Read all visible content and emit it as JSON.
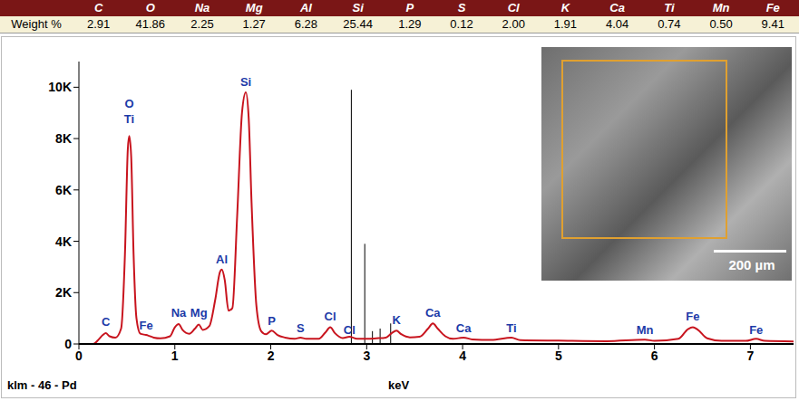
{
  "table": {
    "columns": [
      "C",
      "O",
      "Na",
      "Mg",
      "Al",
      "Si",
      "P",
      "S",
      "Cl",
      "K",
      "Ca",
      "Ti",
      "Mn",
      "Fe"
    ],
    "row_label": "Weight %",
    "values": [
      "2.91",
      "41.86",
      "2.25",
      "1.27",
      "6.28",
      "25.44",
      "1.29",
      "0.12",
      "2.00",
      "1.91",
      "4.04",
      "0.74",
      "0.50",
      "9.41"
    ]
  },
  "inset": {
    "scale_label": "200 µm"
  },
  "chart_data": {
    "type": "line",
    "x_label": "keV",
    "color": "#c8141e",
    "xlim": [
      0,
      7.45
    ],
    "xticks": [
      0,
      1,
      2,
      3,
      4,
      5,
      6,
      7
    ],
    "ylim": [
      0,
      11000
    ],
    "yticks": [
      0,
      {
        "value": 2000,
        "label": "2K"
      },
      {
        "value": 4000,
        "label": "4K"
      },
      {
        "value": 6000,
        "label": "6K"
      },
      {
        "value": 8000,
        "label": "8K"
      },
      {
        "value": 10000,
        "label": "10K"
      }
    ],
    "x": [
      0.0,
      0.15,
      0.2,
      0.25,
      0.28,
      0.32,
      0.38,
      0.44,
      0.48,
      0.51,
      0.525,
      0.545,
      0.57,
      0.6,
      0.64,
      0.7,
      0.72,
      0.78,
      0.85,
      0.95,
      1.0,
      1.04,
      1.08,
      1.15,
      1.21,
      1.25,
      1.29,
      1.36,
      1.42,
      1.47,
      1.49,
      1.52,
      1.56,
      1.6,
      1.65,
      1.7,
      1.74,
      1.77,
      1.8,
      1.85,
      1.9,
      1.95,
      2.01,
      2.07,
      2.15,
      2.25,
      2.31,
      2.37,
      2.5,
      2.57,
      2.62,
      2.67,
      2.75,
      2.82,
      2.9,
      3.0,
      3.1,
      3.2,
      3.26,
      3.31,
      3.36,
      3.45,
      3.55,
      3.64,
      3.69,
      3.74,
      3.82,
      3.9,
      4.01,
      4.1,
      4.3,
      4.51,
      4.6,
      5.0,
      5.5,
      5.9,
      6.0,
      6.25,
      6.35,
      6.4,
      6.45,
      6.55,
      6.7,
      6.95,
      7.06,
      7.15,
      7.45
    ],
    "values": [
      0,
      0,
      150,
      350,
      420,
      300,
      250,
      600,
      3500,
      7600,
      8100,
      7300,
      3500,
      1000,
      400,
      350,
      330,
      250,
      220,
      300,
      650,
      780,
      550,
      400,
      600,
      760,
      550,
      700,
      1700,
      2800,
      2900,
      2500,
      1300,
      1400,
      5000,
      9000,
      9800,
      8800,
      5500,
      1500,
      500,
      380,
      520,
      350,
      250,
      200,
      250,
      200,
      200,
      450,
      650,
      420,
      230,
      280,
      200,
      200,
      220,
      250,
      420,
      520,
      380,
      260,
      280,
      600,
      800,
      600,
      300,
      200,
      250,
      180,
      160,
      250,
      150,
      130,
      110,
      170,
      120,
      200,
      580,
      650,
      560,
      220,
      120,
      120,
      200,
      120,
      100
    ],
    "peak_labels": [
      {
        "label": "C",
        "x": 0.28,
        "y": 700
      },
      {
        "label": "O",
        "x": 0.525,
        "y": 9200
      },
      {
        "label": "Ti",
        "x": 0.525,
        "y": 8600
      },
      {
        "label": "Fe",
        "x": 0.7,
        "y": 550
      },
      {
        "label": "Na",
        "x": 1.04,
        "y": 1050
      },
      {
        "label": "Mg",
        "x": 1.25,
        "y": 1050
      },
      {
        "label": "Al",
        "x": 1.49,
        "y": 3150
      },
      {
        "label": "Si",
        "x": 1.74,
        "y": 10050
      },
      {
        "label": "P",
        "x": 2.01,
        "y": 750
      },
      {
        "label": "S",
        "x": 2.31,
        "y": 450
      },
      {
        "label": "Cl",
        "x": 2.62,
        "y": 900
      },
      {
        "label": "Cl",
        "x": 2.82,
        "y": 400
      },
      {
        "label": "K",
        "x": 3.31,
        "y": 780
      },
      {
        "label": "Ca",
        "x": 3.69,
        "y": 1050
      },
      {
        "label": "Ca",
        "x": 4.01,
        "y": 450
      },
      {
        "label": "Ti",
        "x": 4.51,
        "y": 450
      },
      {
        "label": "Mn",
        "x": 5.9,
        "y": 400
      },
      {
        "label": "Fe",
        "x": 6.4,
        "y": 900
      },
      {
        "label": "Fe",
        "x": 7.06,
        "y": 400
      }
    ],
    "markers": {
      "label": "klm - 46 - Pd",
      "x": [
        2.84,
        2.98,
        3.06,
        3.14,
        3.25
      ],
      "heights": [
        9900,
        3900,
        500,
        600,
        800
      ]
    }
  }
}
